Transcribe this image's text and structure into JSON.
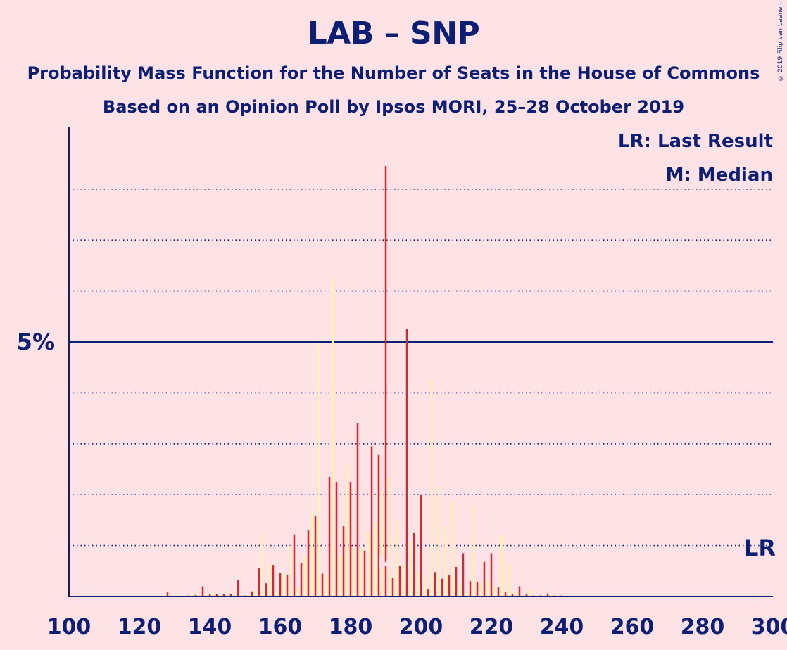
{
  "title": "LAB – SNP",
  "subtitle": "Probability Mass Function for the Number of Seats in the House of Commons",
  "subtitle2": "Based on an Opinion Poll by Ipsos MORI, 25–28 October 2019",
  "copyright": "© 2019 Filip van Laenen",
  "colors": {
    "background": "#FFE2E6",
    "text": "#0C1F73",
    "bar_primary": "#E4212B",
    "bar_secondary": "#FFF3A6"
  },
  "chart_data": {
    "type": "bar",
    "xlim": [
      100,
      300
    ],
    "ylim": [
      0,
      9.2
    ],
    "x_ticks": [
      100,
      120,
      140,
      160,
      180,
      200,
      220,
      240,
      260,
      280,
      300
    ],
    "x_tick_labels": [
      "100",
      "120",
      "140",
      "160",
      "180",
      "200",
      "220",
      "240",
      "260",
      "280",
      "300"
    ],
    "y_major_tick": 5,
    "y_major_tick_label": "5%",
    "y_dotted_gridlines": [
      1,
      2,
      3,
      4,
      6,
      7,
      8
    ],
    "legend": [
      "LR: Last Result",
      "M: Median"
    ],
    "last_result": 300,
    "last_result_label": "LR",
    "median": 190,
    "median_label": "M",
    "unit": "%",
    "series": [
      {
        "style": "primary",
        "x": [
          128,
          132,
          134,
          136,
          138,
          140,
          142,
          144,
          146,
          148,
          150,
          152,
          154,
          156,
          158,
          160,
          162,
          164,
          166,
          168,
          170,
          172,
          174,
          176,
          178,
          180,
          182,
          184,
          186,
          188,
          190,
          192,
          194,
          196,
          198,
          200,
          202,
          204,
          206,
          208,
          210,
          212,
          214,
          216,
          218,
          220,
          222,
          224,
          226,
          228,
          230,
          232,
          234,
          236,
          238,
          240,
          242
        ],
        "values": [
          0.08,
          0.01,
          0.02,
          0.03,
          0.2,
          0.04,
          0.05,
          0.05,
          0.05,
          0.33,
          0.02,
          0.1,
          0.55,
          0.26,
          0.62,
          0.46,
          0.43,
          1.22,
          0.65,
          1.3,
          1.58,
          0.45,
          2.35,
          2.25,
          1.38,
          2.25,
          3.4,
          0.9,
          2.95,
          2.78,
          8.45,
          0.36,
          0.6,
          5.25,
          1.25,
          2.0,
          0.15,
          0.48,
          0.35,
          0.42,
          0.58,
          0.85,
          0.3,
          0.28,
          0.68,
          0.85,
          0.18,
          0.08,
          0.05,
          0.2,
          0.05,
          0.02,
          0.02,
          0.06,
          0.02,
          0.02,
          0.01
        ]
      },
      {
        "style": "secondary",
        "x": [
          127,
          129,
          131,
          133,
          135,
          137,
          139,
          141,
          143,
          145,
          147,
          149,
          151,
          153,
          155,
          157,
          159,
          161,
          163,
          165,
          167,
          169,
          171,
          173,
          175,
          177,
          179,
          181,
          183,
          185,
          187,
          189,
          191,
          193,
          195,
          197,
          199,
          201,
          203,
          205,
          207,
          209,
          211,
          213,
          215,
          217,
          219,
          221,
          223,
          225,
          227,
          229,
          231,
          233,
          235,
          237,
          239,
          241
        ],
        "values": [
          0.02,
          0.02,
          0.04,
          0.02,
          0.07,
          0.03,
          0.04,
          0.09,
          0.03,
          0.1,
          0.03,
          0.03,
          0.03,
          0.12,
          1.25,
          0.63,
          0.08,
          0.48,
          1.0,
          0.18,
          0.78,
          1.68,
          4.95,
          0.43,
          6.25,
          0.82,
          2.6,
          0.95,
          0.95,
          1.25,
          1.45,
          2.08,
          2.35,
          1.5,
          0.62,
          1.08,
          0.48,
          0.42,
          4.28,
          2.18,
          1.38,
          1.88,
          0.25,
          0.08,
          1.78,
          0.25,
          0.3,
          0.2,
          1.22,
          0.66,
          0.1,
          0.02,
          0.15,
          0.02,
          0.02,
          0.05,
          0.02,
          0.01
        ]
      }
    ]
  }
}
